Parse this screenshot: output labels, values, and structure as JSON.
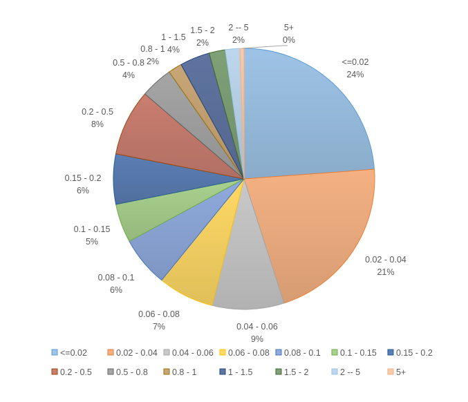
{
  "chart_data": {
    "type": "pie",
    "title": "",
    "categories": [
      "<=0.02",
      "0.02 - 0.04",
      "0.04 - 0.06",
      "0.06 - 0.08",
      "0.08 - 0.1",
      "0.1 - 0.15",
      "0.15 - 0.2",
      "0.2 -  0.5",
      "0.5 - 0.8",
      "0.8 - 1",
      "1 - 1.5",
      "1.5 - 2",
      "2 -- 5",
      "5+"
    ],
    "values": [
      23.8,
      21.2,
      8.9,
      6.9,
      6.2,
      4.8,
      6.2,
      8.2,
      4.0,
      1.7,
      3.7,
      2.0,
      1.8,
      0.5
    ],
    "value_labels": [
      "24%",
      "21%",
      "9%",
      "7%",
      "6%",
      "5%",
      "6%",
      "8%",
      "4%",
      "2%",
      "4%",
      "2%",
      "2%",
      "0%"
    ],
    "colors": [
      "#9dc3e6",
      "#f4b183",
      "#c9c9c9",
      "#ffd966",
      "#8faadc",
      "#a9d18e",
      "#5b7eb4",
      "#c97e70",
      "#a5a5a5",
      "#c9a677",
      "#5e74a0",
      "#7ea177",
      "#bdd7ee",
      "#f8cbad"
    ],
    "edge_colors": [
      "#5b9bd5",
      "#ed7d31",
      "#a5a5a5",
      "#ffc000",
      "#4472c4",
      "#70ad47",
      "#255e91",
      "#9e480e",
      "#636363",
      "#997300",
      "#264478",
      "#43682b",
      "#9dc3e6",
      "#f4b183"
    ],
    "legend_position": "bottom"
  }
}
